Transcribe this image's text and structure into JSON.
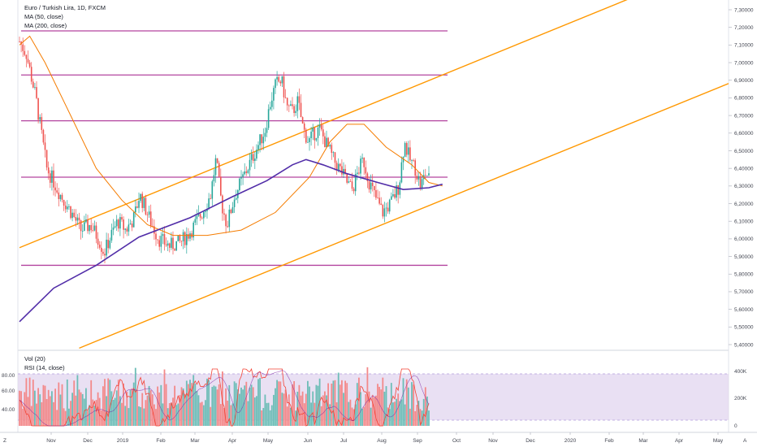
{
  "header": {
    "symbol_title": "Euro / Turkish Lira, 1D, FXCM",
    "indicator_ma50": "MA (50, close)",
    "indicator_ma200": "MA (200, close)"
  },
  "lower_pane": {
    "indicator_vol": "Vol (20)",
    "indicator_rsi": "RSI (14, close)"
  },
  "corner_labels": {
    "left": "Z",
    "right": "A"
  },
  "colors": {
    "up": "#26a69a",
    "down": "#ef5350",
    "ma50": "#f57c00",
    "ma200": "#512da8",
    "hline": "#b3449f",
    "channel": "#ff9800",
    "rsi_band": "#e1d5ef",
    "vol_up": "#6dbdb7",
    "vol_down": "#f3898a"
  },
  "chart_data": [
    {
      "type": "candlestick",
      "title": "Euro / Turkish Lira, 1D, FXCM",
      "y_ticks": [
        "7,30000",
        "7,20000",
        "7,10000",
        "7,00000",
        "6,90000",
        "6,80000",
        "6,70000",
        "6,60000",
        "6,50000",
        "6,40000",
        "6,30000",
        "6,20000",
        "6,10000",
        "6,00000",
        "5,90000",
        "5,80000",
        "5,70000",
        "5,60000",
        "5,50000",
        "5,40000"
      ],
      "ylim": [
        5.38,
        7.33
      ],
      "x_ticks": [
        "Nov",
        "Dec",
        "2019",
        "Feb",
        "Mar",
        "Apr",
        "May",
        "Jun",
        "Jul",
        "Aug",
        "Sep",
        "Oct",
        "Nov",
        "Dec",
        "2020",
        "Feb",
        "Mar",
        "Apr",
        "May"
      ],
      "series": [
        {
          "name": "MA (50, close)",
          "color": "#f57c00",
          "points": [
            [
              0,
              7.1
            ],
            [
              6,
              7.15
            ],
            [
              15,
              7.0
            ],
            [
              30,
              6.7
            ],
            [
              45,
              6.4
            ],
            [
              60,
              6.22
            ],
            [
              75,
              6.08
            ],
            [
              90,
              6.02
            ],
            [
              110,
              6.02
            ],
            [
              130,
              6.05
            ],
            [
              150,
              6.15
            ],
            [
              170,
              6.35
            ],
            [
              182,
              6.55
            ],
            [
              192,
              6.65
            ],
            [
              202,
              6.65
            ],
            [
              215,
              6.52
            ],
            [
              230,
              6.42
            ],
            [
              240,
              6.32
            ],
            [
              248,
              6.3
            ]
          ]
        },
        {
          "name": "MA (200, close)",
          "color": "#512da8",
          "points": [
            [
              0,
              5.53
            ],
            [
              20,
              5.72
            ],
            [
              45,
              5.85
            ],
            [
              70,
              6.01
            ],
            [
              100,
              6.12
            ],
            [
              125,
              6.24
            ],
            [
              145,
              6.33
            ],
            [
              160,
              6.42
            ],
            [
              168,
              6.45
            ],
            [
              178,
              6.42
            ],
            [
              192,
              6.37
            ],
            [
              210,
              6.32
            ],
            [
              225,
              6.28
            ],
            [
              240,
              6.29
            ],
            [
              248,
              6.31
            ]
          ]
        }
      ],
      "horizontal_levels": [
        7.18,
        6.93,
        6.67,
        6.35,
        5.85
      ],
      "channel_lines": [
        {
          "from": [
            0,
            5.95
          ],
          "to": [
            248,
            6.93
          ]
        },
        {
          "from": [
            35,
            5.38
          ],
          "to": [
            248,
            6.22
          ]
        }
      ]
    },
    {
      "type": "bar",
      "title": "Vol (20) / RSI (14, close)",
      "y_ticks_left": [
        "80.00",
        "60.00",
        "40.00"
      ],
      "y_ticks_right": [
        "400K",
        "200K",
        "0"
      ],
      "rsi_band": [
        30,
        70
      ]
    }
  ]
}
